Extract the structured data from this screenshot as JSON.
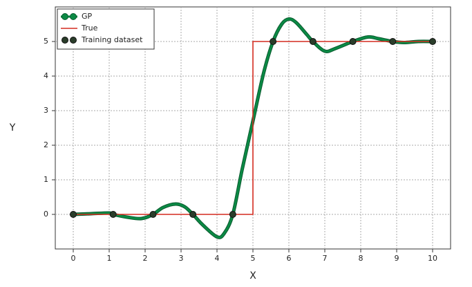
{
  "chart_data": {
    "type": "line",
    "xlabel": "X",
    "ylabel": "Y",
    "xlim": [
      -0.5,
      10.5
    ],
    "ylim": [
      -1,
      6
    ],
    "xticks": [
      0,
      1,
      2,
      3,
      4,
      5,
      6,
      7,
      8,
      9,
      10
    ],
    "yticks": [
      0,
      1,
      2,
      3,
      4,
      5
    ],
    "grid": true,
    "legend": "upper left",
    "series": [
      {
        "name": "GP",
        "color": "#0b8a45",
        "mode": "line",
        "x": [
          0,
          0.5,
          1,
          1.11,
          1.5,
          1.9,
          2.22,
          2.5,
          2.85,
          3.1,
          3.33,
          3.6,
          4,
          4.2,
          4.44,
          4.7,
          5,
          5.3,
          5.56,
          5.8,
          6,
          6.2,
          6.5,
          6.67,
          7,
          7.3,
          7.78,
          8.2,
          8.5,
          8.89,
          9.2,
          9.6,
          10
        ],
        "values": [
          0,
          0.02,
          0.04,
          0,
          -0.08,
          -0.12,
          0,
          0.2,
          0.3,
          0.22,
          0,
          -0.3,
          -0.65,
          -0.55,
          0,
          1.3,
          2.7,
          4.1,
          5,
          5.5,
          5.65,
          5.55,
          5.2,
          5,
          4.72,
          4.8,
          5,
          5.13,
          5.08,
          5,
          4.97,
          5,
          5
        ]
      },
      {
        "name": "True",
        "color": "#d42a1e",
        "mode": "line",
        "x": [
          0,
          5,
          5,
          10
        ],
        "values": [
          0,
          0,
          5,
          5
        ]
      },
      {
        "name": "Training dataset",
        "color": "#2a3d2a",
        "mode": "markers",
        "x": [
          0,
          1.11,
          2.22,
          3.33,
          4.44,
          5.56,
          6.67,
          7.78,
          8.89,
          10
        ],
        "values": [
          0,
          0,
          0,
          0,
          0,
          5,
          5,
          5,
          5,
          5
        ]
      }
    ]
  }
}
